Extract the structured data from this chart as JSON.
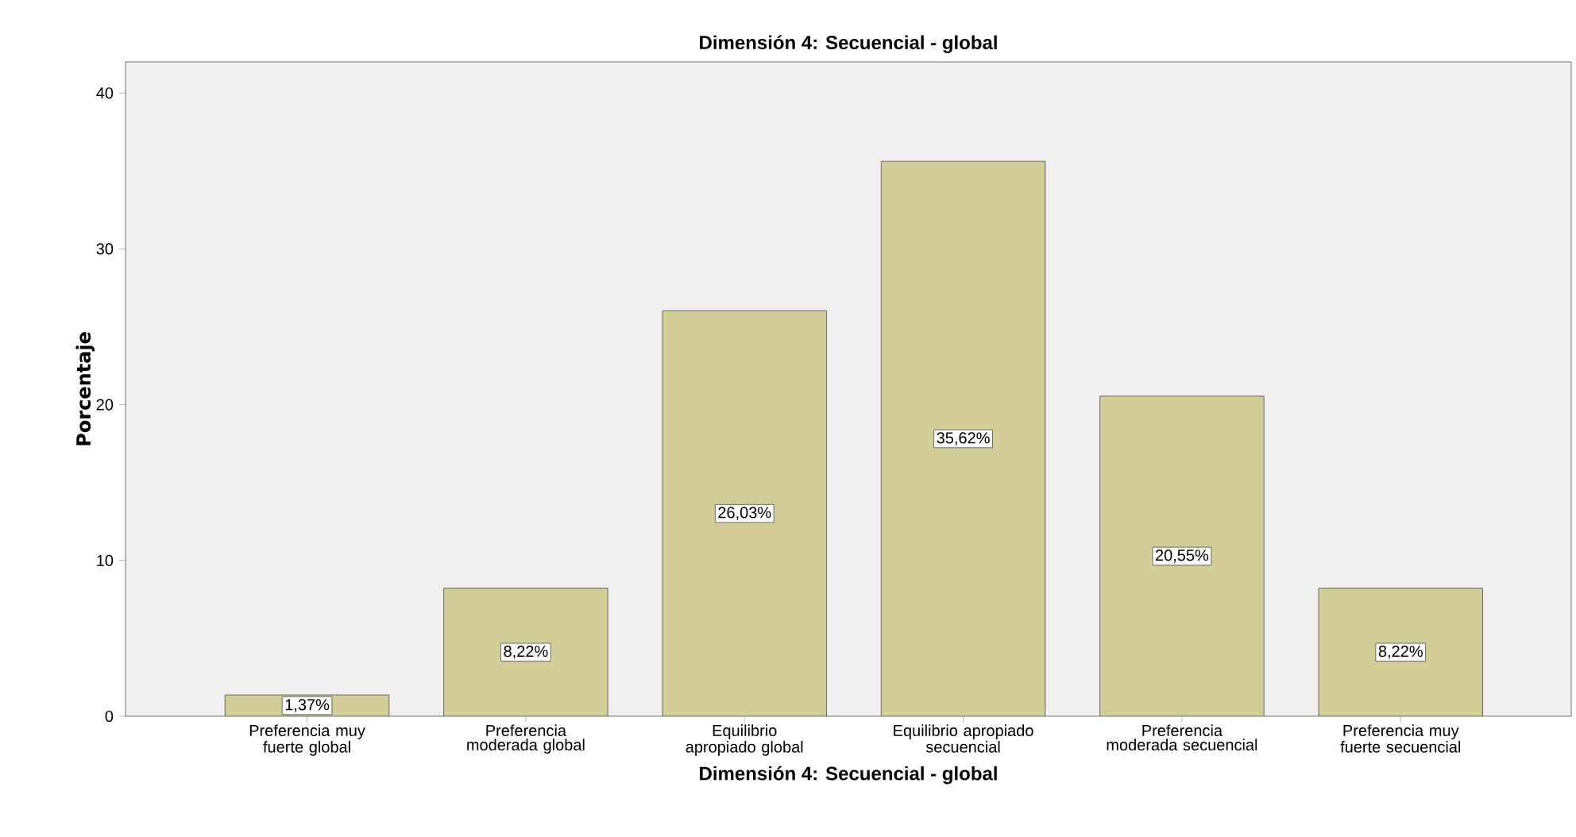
{
  "chart_data": {
    "type": "bar",
    "title": "Dimensión 4: Secuencial - global",
    "xlabel": "Dimensión 4: Secuencial - global",
    "ylabel": "Porcentaje",
    "categories": [
      "Preferencia muy fuerte global",
      "Preferencia moderada global",
      "Equilibrio apropiado global",
      "Equilibrio apropiado secuencial",
      "Preferencia moderada secuencial",
      "Preferencia muy fuerte secuencial"
    ],
    "values": [
      1.37,
      8.22,
      26.03,
      35.62,
      20.55,
      8.22
    ],
    "value_labels": [
      "1,37%",
      "8,22%",
      "26,03%",
      "35,62%",
      "20,55%",
      "8,22%"
    ],
    "color": "#d3ce97",
    "ylim": [
      0,
      42
    ],
    "yticks": [
      0,
      10,
      20,
      30,
      40
    ],
    "grid": false
  }
}
